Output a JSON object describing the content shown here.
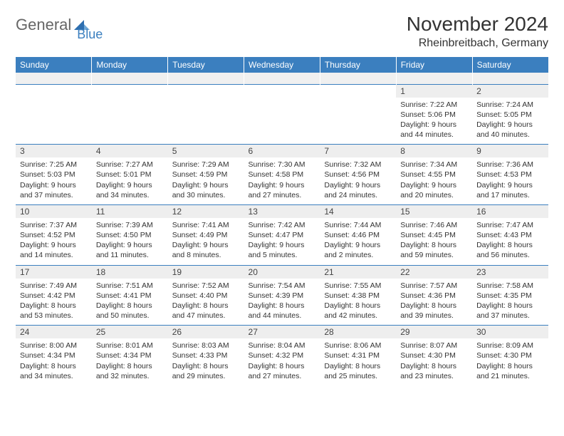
{
  "logo": {
    "text1": "General",
    "text2": "Blue"
  },
  "title": "November 2024",
  "location": "Rheinbreitbach, Germany",
  "colors": {
    "header_bg": "#3b7fbf",
    "header_text": "#ffffff",
    "daynum_bg": "#eeeeee",
    "body_text": "#333333",
    "logo_gray": "#666666",
    "logo_blue": "#3b7fbf",
    "row_border": "#3b7fbf"
  },
  "fonts": {
    "title_size": 28,
    "location_size": 16,
    "header_size": 12,
    "cell_size": 10.5
  },
  "day_headers": [
    "Sunday",
    "Monday",
    "Tuesday",
    "Wednesday",
    "Thursday",
    "Friday",
    "Saturday"
  ],
  "weeks": [
    [
      {
        "n": "",
        "sr": "",
        "ss": "",
        "dl": ""
      },
      {
        "n": "",
        "sr": "",
        "ss": "",
        "dl": ""
      },
      {
        "n": "",
        "sr": "",
        "ss": "",
        "dl": ""
      },
      {
        "n": "",
        "sr": "",
        "ss": "",
        "dl": ""
      },
      {
        "n": "",
        "sr": "",
        "ss": "",
        "dl": ""
      },
      {
        "n": "1",
        "sr": "Sunrise: 7:22 AM",
        "ss": "Sunset: 5:06 PM",
        "dl": "Daylight: 9 hours and 44 minutes."
      },
      {
        "n": "2",
        "sr": "Sunrise: 7:24 AM",
        "ss": "Sunset: 5:05 PM",
        "dl": "Daylight: 9 hours and 40 minutes."
      }
    ],
    [
      {
        "n": "3",
        "sr": "Sunrise: 7:25 AM",
        "ss": "Sunset: 5:03 PM",
        "dl": "Daylight: 9 hours and 37 minutes."
      },
      {
        "n": "4",
        "sr": "Sunrise: 7:27 AM",
        "ss": "Sunset: 5:01 PM",
        "dl": "Daylight: 9 hours and 34 minutes."
      },
      {
        "n": "5",
        "sr": "Sunrise: 7:29 AM",
        "ss": "Sunset: 4:59 PM",
        "dl": "Daylight: 9 hours and 30 minutes."
      },
      {
        "n": "6",
        "sr": "Sunrise: 7:30 AM",
        "ss": "Sunset: 4:58 PM",
        "dl": "Daylight: 9 hours and 27 minutes."
      },
      {
        "n": "7",
        "sr": "Sunrise: 7:32 AM",
        "ss": "Sunset: 4:56 PM",
        "dl": "Daylight: 9 hours and 24 minutes."
      },
      {
        "n": "8",
        "sr": "Sunrise: 7:34 AM",
        "ss": "Sunset: 4:55 PM",
        "dl": "Daylight: 9 hours and 20 minutes."
      },
      {
        "n": "9",
        "sr": "Sunrise: 7:36 AM",
        "ss": "Sunset: 4:53 PM",
        "dl": "Daylight: 9 hours and 17 minutes."
      }
    ],
    [
      {
        "n": "10",
        "sr": "Sunrise: 7:37 AM",
        "ss": "Sunset: 4:52 PM",
        "dl": "Daylight: 9 hours and 14 minutes."
      },
      {
        "n": "11",
        "sr": "Sunrise: 7:39 AM",
        "ss": "Sunset: 4:50 PM",
        "dl": "Daylight: 9 hours and 11 minutes."
      },
      {
        "n": "12",
        "sr": "Sunrise: 7:41 AM",
        "ss": "Sunset: 4:49 PM",
        "dl": "Daylight: 9 hours and 8 minutes."
      },
      {
        "n": "13",
        "sr": "Sunrise: 7:42 AM",
        "ss": "Sunset: 4:47 PM",
        "dl": "Daylight: 9 hours and 5 minutes."
      },
      {
        "n": "14",
        "sr": "Sunrise: 7:44 AM",
        "ss": "Sunset: 4:46 PM",
        "dl": "Daylight: 9 hours and 2 minutes."
      },
      {
        "n": "15",
        "sr": "Sunrise: 7:46 AM",
        "ss": "Sunset: 4:45 PM",
        "dl": "Daylight: 8 hours and 59 minutes."
      },
      {
        "n": "16",
        "sr": "Sunrise: 7:47 AM",
        "ss": "Sunset: 4:43 PM",
        "dl": "Daylight: 8 hours and 56 minutes."
      }
    ],
    [
      {
        "n": "17",
        "sr": "Sunrise: 7:49 AM",
        "ss": "Sunset: 4:42 PM",
        "dl": "Daylight: 8 hours and 53 minutes."
      },
      {
        "n": "18",
        "sr": "Sunrise: 7:51 AM",
        "ss": "Sunset: 4:41 PM",
        "dl": "Daylight: 8 hours and 50 minutes."
      },
      {
        "n": "19",
        "sr": "Sunrise: 7:52 AM",
        "ss": "Sunset: 4:40 PM",
        "dl": "Daylight: 8 hours and 47 minutes."
      },
      {
        "n": "20",
        "sr": "Sunrise: 7:54 AM",
        "ss": "Sunset: 4:39 PM",
        "dl": "Daylight: 8 hours and 44 minutes."
      },
      {
        "n": "21",
        "sr": "Sunrise: 7:55 AM",
        "ss": "Sunset: 4:38 PM",
        "dl": "Daylight: 8 hours and 42 minutes."
      },
      {
        "n": "22",
        "sr": "Sunrise: 7:57 AM",
        "ss": "Sunset: 4:36 PM",
        "dl": "Daylight: 8 hours and 39 minutes."
      },
      {
        "n": "23",
        "sr": "Sunrise: 7:58 AM",
        "ss": "Sunset: 4:35 PM",
        "dl": "Daylight: 8 hours and 37 minutes."
      }
    ],
    [
      {
        "n": "24",
        "sr": "Sunrise: 8:00 AM",
        "ss": "Sunset: 4:34 PM",
        "dl": "Daylight: 8 hours and 34 minutes."
      },
      {
        "n": "25",
        "sr": "Sunrise: 8:01 AM",
        "ss": "Sunset: 4:34 PM",
        "dl": "Daylight: 8 hours and 32 minutes."
      },
      {
        "n": "26",
        "sr": "Sunrise: 8:03 AM",
        "ss": "Sunset: 4:33 PM",
        "dl": "Daylight: 8 hours and 29 minutes."
      },
      {
        "n": "27",
        "sr": "Sunrise: 8:04 AM",
        "ss": "Sunset: 4:32 PM",
        "dl": "Daylight: 8 hours and 27 minutes."
      },
      {
        "n": "28",
        "sr": "Sunrise: 8:06 AM",
        "ss": "Sunset: 4:31 PM",
        "dl": "Daylight: 8 hours and 25 minutes."
      },
      {
        "n": "29",
        "sr": "Sunrise: 8:07 AM",
        "ss": "Sunset: 4:30 PM",
        "dl": "Daylight: 8 hours and 23 minutes."
      },
      {
        "n": "30",
        "sr": "Sunrise: 8:09 AM",
        "ss": "Sunset: 4:30 PM",
        "dl": "Daylight: 8 hours and 21 minutes."
      }
    ]
  ]
}
